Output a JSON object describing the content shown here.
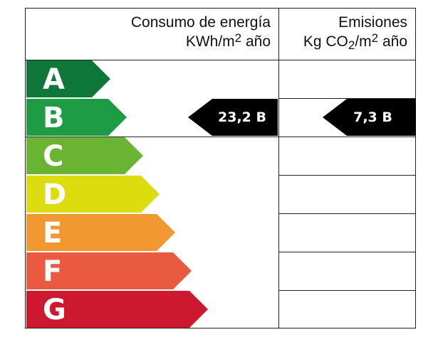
{
  "header": {
    "consumo_line1": "Consumo de energía",
    "consumo_line2_prefix": "KWh/m",
    "consumo_line2_sup": "2",
    "consumo_line2_suffix": " año",
    "emisiones_line1": "Emisiones",
    "emisiones_line2_prefix": "Kg CO",
    "emisiones_line2_sub": "2",
    "emisiones_line2_mid": "/m",
    "emisiones_line2_sup": "2",
    "emisiones_line2_suffix": " año"
  },
  "classes": [
    {
      "letter": "A",
      "color": "#10773a"
    },
    {
      "letter": "B",
      "color": "#1e9b45"
    },
    {
      "letter": "C",
      "color": "#69b533"
    },
    {
      "letter": "D",
      "color": "#dddc0f"
    },
    {
      "letter": "E",
      "color": "#f19831"
    },
    {
      "letter": "F",
      "color": "#e95a40"
    },
    {
      "letter": "G",
      "color": "#cc1930"
    }
  ],
  "ratings": {
    "consumo": {
      "text": "23,2 B",
      "value": 23.2,
      "class": "B"
    },
    "emisiones": {
      "text": "7,3 B",
      "value": 7.3,
      "class": "B"
    }
  }
}
